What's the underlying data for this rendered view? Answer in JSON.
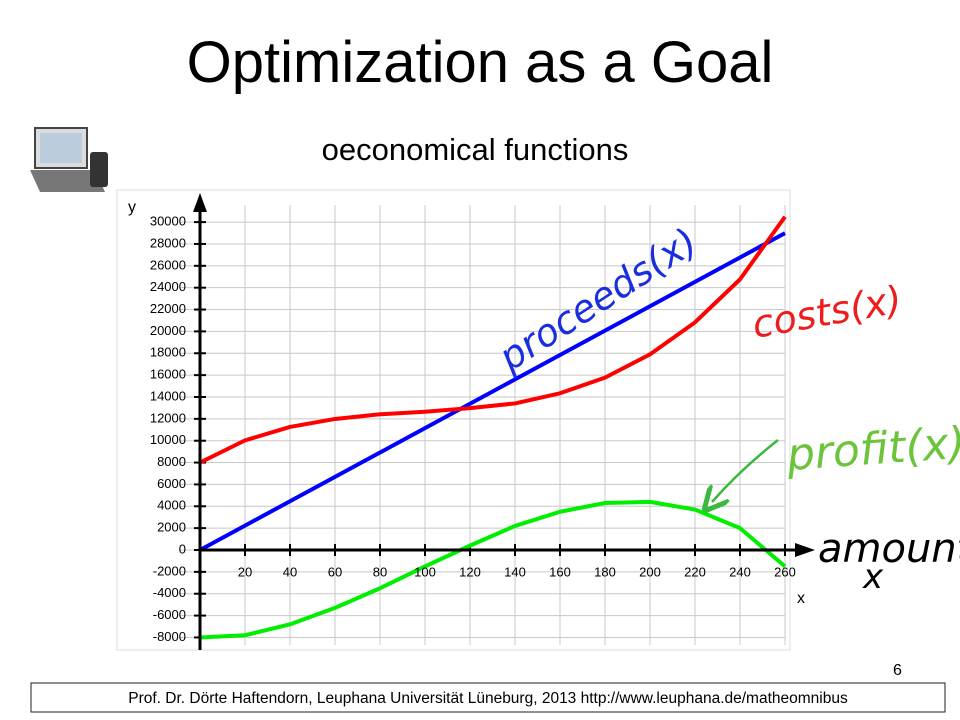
{
  "chart_data": {
    "type": "line",
    "title": "Optimization as a Goal",
    "subtitle": "oeconomical functions",
    "x_label": "x",
    "y_label": "y",
    "x": [
      0,
      20,
      40,
      60,
      80,
      100,
      120,
      140,
      160,
      180,
      200,
      220,
      240,
      260
    ],
    "series": [
      {
        "name": "proceeds(x)",
        "color": "#0000ff",
        "values": [
          0,
          2230,
          4460,
          6690,
          8920,
          11150,
          13380,
          15610,
          17840,
          20070,
          22300,
          24530,
          26760,
          28990
        ]
      },
      {
        "name": "costs(x)",
        "color": "#ff0000",
        "values": [
          8000,
          10030,
          11260,
          11990,
          12420,
          12650,
          12980,
          13410,
          14340,
          15770,
          17900,
          20830,
          24760,
          30490
        ]
      },
      {
        "name": "profit(x)",
        "color": "#00ee00",
        "values": [
          -8000,
          -7800,
          -6800,
          -5300,
          -3500,
          -1500,
          400,
          2200,
          3500,
          4300,
          4400,
          3700,
          2000,
          -1500
        ]
      }
    ],
    "annotations": [
      "amount",
      "x"
    ],
    "xlim": [
      0,
      260
    ],
    "ylim": [
      -8500,
      31000
    ],
    "xticks": [
      20,
      40,
      60,
      80,
      100,
      120,
      140,
      160,
      180,
      200,
      220,
      240,
      260
    ],
    "yticks": [
      -8000,
      -6000,
      -4000,
      -2000,
      0,
      2000,
      4000,
      6000,
      8000,
      10000,
      12000,
      14000,
      16000,
      18000,
      20000,
      22000,
      24000,
      26000,
      28000,
      30000
    ],
    "grid": true
  },
  "page_number": "6",
  "footer": "Prof. Dr. Dörte Haftendorn, Leuphana Universität Lüneburg, 2013 http://www.leuphana.de/matheomnibus"
}
